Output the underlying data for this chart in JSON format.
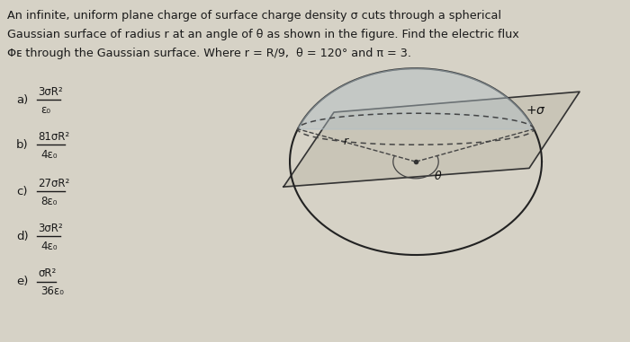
{
  "bg_color": "#d6d2c6",
  "text_color": "#1a1a1a",
  "title_line1": "An infinite, uniform plane charge of surface charge density σ cuts through a spherical",
  "title_line2": "Gaussian surface of radius r at an angle of θ as shown in the figure. Find the electric flux",
  "title_line3": "Φᴇ through the Gaussian surface. Where r = R/9,  θ = 120° and π = 3.",
  "opt_labels": [
    "a)",
    "b)",
    "c)",
    "d)",
    "e)"
  ],
  "opt_nums": [
    "3σR²",
    "81σR²",
    "27σR²",
    "3σR²",
    "σR²"
  ],
  "opt_dens": [
    "ε₀",
    "4ε₀",
    "8ε₀",
    "4ε₀",
    "36ε₀"
  ],
  "plane_color": "#c8c4b6",
  "sphere_color": "#222222",
  "ellipse_fill": "#b0bec5",
  "dash_color": "#444444",
  "sigma_label": "+σ"
}
